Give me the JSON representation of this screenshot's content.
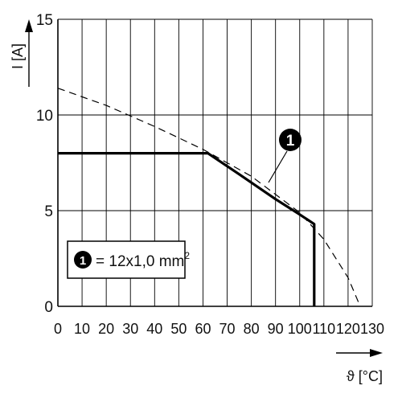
{
  "chart_data": {
    "type": "line",
    "xlabel": "ϑ [°C]",
    "ylabel": "I [A]",
    "xlim": [
      0,
      130
    ],
    "ylim": [
      0,
      15
    ],
    "x_ticks": [
      "0",
      "10",
      "20",
      "30",
      "40",
      "50",
      "60",
      "70",
      "80",
      "90",
      "100",
      "110",
      "120",
      "130"
    ],
    "y_ticks": [
      "0",
      "5",
      "10",
      "15"
    ],
    "grid": true,
    "series": [
      {
        "name": "1",
        "style": "solid",
        "x": [
          0,
          62,
          75,
          90,
          100,
          106,
          106
        ],
        "y": [
          8,
          8,
          6.9,
          5.6,
          4.8,
          4.3,
          0
        ]
      },
      {
        "style": "dashed",
        "x": [
          0,
          20,
          40,
          60,
          80,
          100,
          110,
          120,
          125
        ],
        "y": [
          11.4,
          10.5,
          9.4,
          8.2,
          6.8,
          4.9,
          3.5,
          1.5,
          0
        ]
      }
    ],
    "annotations": [
      {
        "marker": "1",
        "text": "= 12x1,0 mm",
        "superscript": "2"
      }
    ],
    "colors": {
      "line": "#000000",
      "grid": "#000000",
      "marker_fill": "#000000",
      "marker_text": "#ffffff"
    }
  }
}
